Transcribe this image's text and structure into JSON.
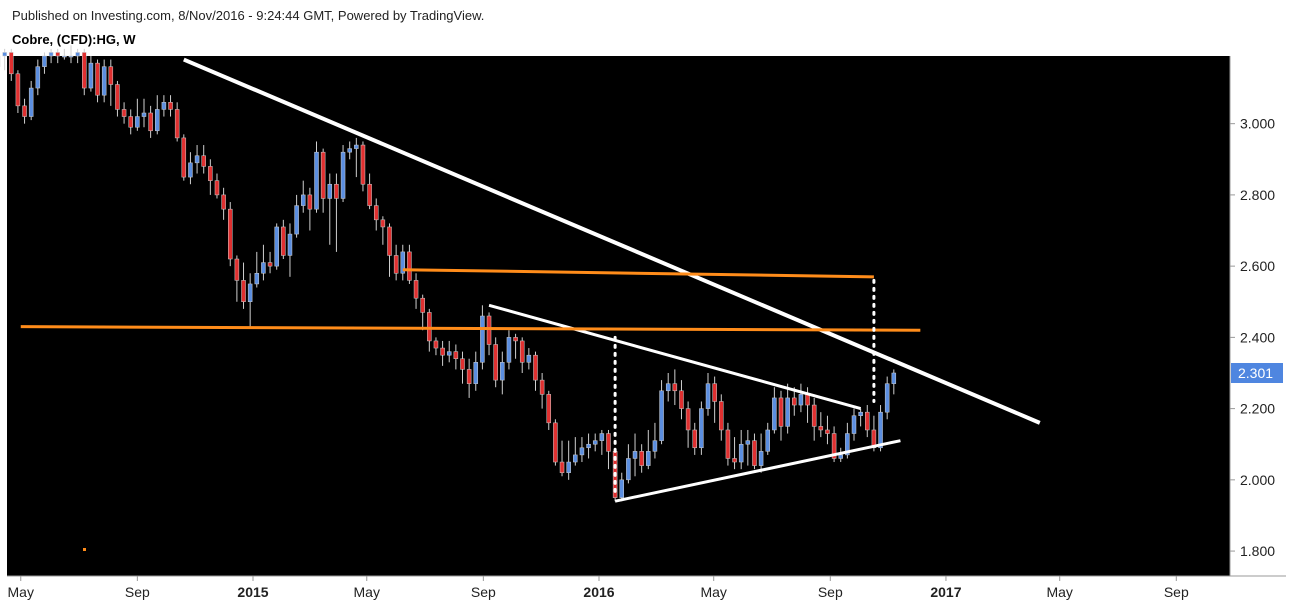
{
  "header": {
    "published": "Published on Investing.com, 8/Nov/2016 - 9:24:44 GMT, Powered by TradingView.",
    "symbol": "Cobre, (CFD):HG, W"
  },
  "colors": {
    "background": "#000000",
    "up_candle": "#5b8ee0",
    "down_candle": "#e03030",
    "wick": "#cfcfcf",
    "trendline": "#ffffff",
    "resistance": "#ff8c1a",
    "price_label_bg": "#4f86e0"
  },
  "chart_data": {
    "type": "candlestick",
    "title": "Cobre, (CFD):HG, W",
    "xlabel": "",
    "ylabel": "",
    "ylim": [
      1.73,
      3.19
    ],
    "y_ticks": [
      "3.000",
      "2.800",
      "2.600",
      "2.400",
      "2.200",
      "2.000",
      "1.800"
    ],
    "x_ticks": [
      {
        "label": "May",
        "date": "2014-05",
        "bold": false
      },
      {
        "label": "Sep",
        "date": "2014-09",
        "bold": false
      },
      {
        "label": "2015",
        "date": "2015-01",
        "bold": true
      },
      {
        "label": "May",
        "date": "2015-05",
        "bold": false
      },
      {
        "label": "Sep",
        "date": "2015-09",
        "bold": false
      },
      {
        "label": "2016",
        "date": "2016-01",
        "bold": true
      },
      {
        "label": "May",
        "date": "2016-05",
        "bold": false
      },
      {
        "label": "Sep",
        "date": "2016-09",
        "bold": false
      },
      {
        "label": "2017",
        "date": "2017-01",
        "bold": true
      },
      {
        "label": "May",
        "date": "2017-05",
        "bold": false
      },
      {
        "label": "Sep",
        "date": "2017-09",
        "bold": false
      }
    ],
    "last_price": "2.301",
    "candles": [
      [
        3.13,
        3.08,
        3.14,
        3.02
      ],
      [
        3.07,
        3.09,
        3.12,
        3.04
      ],
      [
        3.09,
        3.16,
        3.18,
        3.07
      ],
      [
        3.16,
        3.19,
        3.2,
        3.13
      ],
      [
        3.19,
        3.2,
        3.21,
        3.15
      ],
      [
        3.2,
        3.14,
        3.21,
        3.12
      ],
      [
        3.14,
        3.05,
        3.15,
        3.03
      ],
      [
        3.05,
        3.02,
        3.07,
        3.0
      ],
      [
        3.02,
        3.1,
        3.12,
        3.01
      ],
      [
        3.1,
        3.16,
        3.18,
        3.08
      ],
      [
        3.16,
        3.19,
        3.2,
        3.14
      ],
      [
        3.19,
        3.2,
        3.21,
        3.17
      ],
      [
        3.2,
        3.19,
        3.21,
        3.17
      ],
      [
        3.19,
        3.19,
        3.21,
        3.18
      ],
      [
        3.19,
        3.19,
        3.22,
        3.17
      ],
      [
        3.19,
        3.2,
        3.21,
        3.17
      ],
      [
        3.2,
        3.1,
        3.21,
        3.08
      ],
      [
        3.1,
        3.17,
        3.19,
        3.09
      ],
      [
        3.17,
        3.08,
        3.18,
        3.06
      ],
      [
        3.08,
        3.16,
        3.18,
        3.06
      ],
      [
        3.16,
        3.11,
        3.18,
        3.05
      ],
      [
        3.11,
        3.04,
        3.12,
        3.02
      ],
      [
        3.04,
        3.02,
        3.06,
        3.0
      ],
      [
        3.02,
        2.99,
        3.04,
        2.97
      ],
      [
        2.99,
        3.02,
        3.07,
        2.98
      ],
      [
        3.02,
        3.03,
        3.07,
        2.99
      ],
      [
        3.03,
        2.98,
        3.05,
        2.96
      ],
      [
        2.98,
        3.04,
        3.08,
        2.97
      ],
      [
        3.04,
        3.06,
        3.08,
        3.02
      ],
      [
        3.06,
        3.04,
        3.08,
        3.02
      ],
      [
        3.04,
        2.96,
        3.06,
        2.95
      ],
      [
        2.96,
        2.85,
        2.97,
        2.84
      ],
      [
        2.85,
        2.89,
        2.92,
        2.83
      ],
      [
        2.89,
        2.91,
        2.94,
        2.86
      ],
      [
        2.91,
        2.88,
        2.94,
        2.86
      ],
      [
        2.88,
        2.84,
        2.9,
        2.8
      ],
      [
        2.84,
        2.8,
        2.86,
        2.79
      ],
      [
        2.8,
        2.76,
        2.82,
        2.73
      ],
      [
        2.76,
        2.62,
        2.78,
        2.6
      ],
      [
        2.62,
        2.56,
        2.63,
        2.5
      ],
      [
        2.56,
        2.5,
        2.61,
        2.48
      ],
      [
        2.5,
        2.55,
        2.58,
        2.43
      ],
      [
        2.55,
        2.58,
        2.64,
        2.54
      ],
      [
        2.58,
        2.61,
        2.66,
        2.56
      ],
      [
        2.61,
        2.6,
        2.64,
        2.58
      ],
      [
        2.6,
        2.71,
        2.72,
        2.59
      ],
      [
        2.71,
        2.63,
        2.73,
        2.62
      ],
      [
        2.63,
        2.69,
        2.72,
        2.57
      ],
      [
        2.69,
        2.77,
        2.8,
        2.68
      ],
      [
        2.77,
        2.8,
        2.84,
        2.75
      ],
      [
        2.8,
        2.76,
        2.82,
        2.7
      ],
      [
        2.76,
        2.92,
        2.95,
        2.75
      ],
      [
        2.92,
        2.79,
        2.93,
        2.75
      ],
      [
        2.79,
        2.83,
        2.86,
        2.66
      ],
      [
        2.83,
        2.79,
        2.86,
        2.64
      ],
      [
        2.79,
        2.92,
        2.94,
        2.78
      ],
      [
        2.92,
        2.93,
        2.95,
        2.9
      ],
      [
        2.93,
        2.94,
        2.96,
        2.85
      ],
      [
        2.94,
        2.83,
        2.95,
        2.81
      ],
      [
        2.83,
        2.77,
        2.86,
        2.76
      ],
      [
        2.77,
        2.73,
        2.79,
        2.7
      ],
      [
        2.73,
        2.71,
        2.74,
        2.66
      ],
      [
        2.71,
        2.63,
        2.72,
        2.57
      ],
      [
        2.63,
        2.58,
        2.66,
        2.56
      ],
      [
        2.58,
        2.64,
        2.66,
        2.56
      ],
      [
        2.64,
        2.56,
        2.66,
        2.55
      ],
      [
        2.56,
        2.51,
        2.58,
        2.48
      ],
      [
        2.51,
        2.47,
        2.52,
        2.42
      ],
      [
        2.47,
        2.39,
        2.48,
        2.36
      ],
      [
        2.39,
        2.37,
        2.4,
        2.35
      ],
      [
        2.37,
        2.35,
        2.39,
        2.32
      ],
      [
        2.35,
        2.36,
        2.39,
        2.33
      ],
      [
        2.36,
        2.34,
        2.38,
        2.31
      ],
      [
        2.34,
        2.31,
        2.36,
        2.27
      ],
      [
        2.31,
        2.27,
        2.34,
        2.23
      ],
      [
        2.27,
        2.33,
        2.36,
        2.25
      ],
      [
        2.33,
        2.46,
        2.49,
        2.31
      ],
      [
        2.46,
        2.38,
        2.47,
        2.35
      ],
      [
        2.38,
        2.28,
        2.4,
        2.26
      ],
      [
        2.28,
        2.33,
        2.36,
        2.24
      ],
      [
        2.33,
        2.4,
        2.42,
        2.31
      ],
      [
        2.4,
        2.39,
        2.41,
        2.34
      ],
      [
        2.39,
        2.33,
        2.4,
        2.3
      ],
      [
        2.33,
        2.35,
        2.37,
        2.31
      ],
      [
        2.35,
        2.28,
        2.36,
        2.25
      ],
      [
        2.28,
        2.24,
        2.3,
        2.2
      ],
      [
        2.24,
        2.16,
        2.25,
        2.14
      ],
      [
        2.16,
        2.05,
        2.17,
        2.04
      ],
      [
        2.05,
        2.02,
        2.11,
        2.01
      ],
      [
        2.02,
        2.05,
        2.11,
        2.0
      ],
      [
        2.05,
        2.07,
        2.12,
        2.04
      ],
      [
        2.07,
        2.09,
        2.12,
        2.05
      ],
      [
        2.09,
        2.1,
        2.13,
        2.06
      ],
      [
        2.1,
        2.11,
        2.13,
        2.08
      ],
      [
        2.11,
        2.13,
        2.14,
        2.07
      ],
      [
        2.13,
        2.08,
        2.14,
        2.03
      ],
      [
        2.08,
        1.95,
        2.09,
        1.94
      ],
      [
        1.95,
        2.0,
        2.02,
        1.94
      ],
      [
        2.0,
        2.06,
        2.1,
        1.99
      ],
      [
        2.06,
        2.08,
        2.13,
        2.01
      ],
      [
        2.08,
        2.04,
        2.1,
        2.02
      ],
      [
        2.04,
        2.08,
        2.14,
        2.03
      ],
      [
        2.08,
        2.11,
        2.16,
        2.06
      ],
      [
        2.11,
        2.25,
        2.28,
        2.1
      ],
      [
        2.25,
        2.27,
        2.3,
        2.22
      ],
      [
        2.27,
        2.25,
        2.31,
        2.21
      ],
      [
        2.25,
        2.2,
        2.28,
        2.17
      ],
      [
        2.2,
        2.14,
        2.22,
        2.09
      ],
      [
        2.14,
        2.09,
        2.16,
        2.07
      ],
      [
        2.09,
        2.2,
        2.22,
        2.07
      ],
      [
        2.2,
        2.27,
        2.3,
        2.18
      ],
      [
        2.27,
        2.22,
        2.29,
        2.16
      ],
      [
        2.22,
        2.14,
        2.24,
        2.11
      ],
      [
        2.14,
        2.06,
        2.16,
        2.04
      ],
      [
        2.06,
        2.05,
        2.12,
        2.03
      ],
      [
        2.05,
        2.1,
        2.14,
        2.03
      ],
      [
        2.1,
        2.11,
        2.14,
        2.04
      ],
      [
        2.11,
        2.04,
        2.13,
        2.03
      ],
      [
        2.04,
        2.08,
        2.13,
        2.02
      ],
      [
        2.08,
        2.14,
        2.16,
        2.07
      ],
      [
        2.14,
        2.23,
        2.26,
        2.13
      ],
      [
        2.23,
        2.15,
        2.25,
        2.11
      ],
      [
        2.15,
        2.23,
        2.27,
        2.13
      ],
      [
        2.23,
        2.21,
        2.26,
        2.18
      ],
      [
        2.21,
        2.24,
        2.27,
        2.19
      ],
      [
        2.24,
        2.21,
        2.26,
        2.16
      ],
      [
        2.21,
        2.15,
        2.23,
        2.11
      ],
      [
        2.15,
        2.14,
        2.19,
        2.12
      ],
      [
        2.14,
        2.13,
        2.18,
        2.1
      ],
      [
        2.13,
        2.06,
        2.15,
        2.05
      ],
      [
        2.06,
        2.07,
        2.09,
        2.05
      ],
      [
        2.07,
        2.13,
        2.16,
        2.06
      ],
      [
        2.13,
        2.18,
        2.2,
        2.11
      ],
      [
        2.18,
        2.19,
        2.2,
        2.15
      ],
      [
        2.19,
        2.14,
        2.21,
        2.12
      ],
      [
        2.14,
        2.09,
        2.18,
        2.08
      ],
      [
        2.09,
        2.19,
        2.21,
        2.08
      ],
      [
        2.19,
        2.27,
        2.29,
        2.17
      ],
      [
        2.27,
        2.3,
        2.31,
        2.24
      ]
    ],
    "annotations": [
      {
        "name": "descending-resistance-line",
        "color": "white",
        "from": [
          "2014-10-20",
          3.18
        ],
        "to": [
          "2017-04-10",
          2.16
        ]
      },
      {
        "name": "triangle-upper-line",
        "color": "white",
        "from": [
          "2015-09-07",
          2.49
        ],
        "to": [
          "2016-10-03",
          2.2
        ]
      },
      {
        "name": "triangle-lower-line",
        "color": "white",
        "from": [
          "2016-01-18",
          1.94
        ],
        "to": [
          "2016-11-14",
          2.11
        ]
      },
      {
        "name": "horizontal-level-upper",
        "color": "orange",
        "from": [
          "2015-06-08",
          2.59
        ],
        "to": [
          "2016-10-17",
          2.57
        ]
      },
      {
        "name": "horizontal-level-lower",
        "color": "orange",
        "from": [
          "2014-05-01",
          2.43
        ],
        "to": [
          "2016-12-05",
          2.42
        ]
      },
      {
        "name": "vertical-dotted-measure-left",
        "color": "white",
        "from": [
          "2016-01-18",
          2.4
        ],
        "to": [
          "2016-01-18",
          1.96
        ]
      },
      {
        "name": "vertical-dotted-measure-right",
        "color": "white",
        "from": [
          "2016-10-17",
          2.56
        ],
        "to": [
          "2016-10-17",
          2.22
        ]
      }
    ]
  }
}
